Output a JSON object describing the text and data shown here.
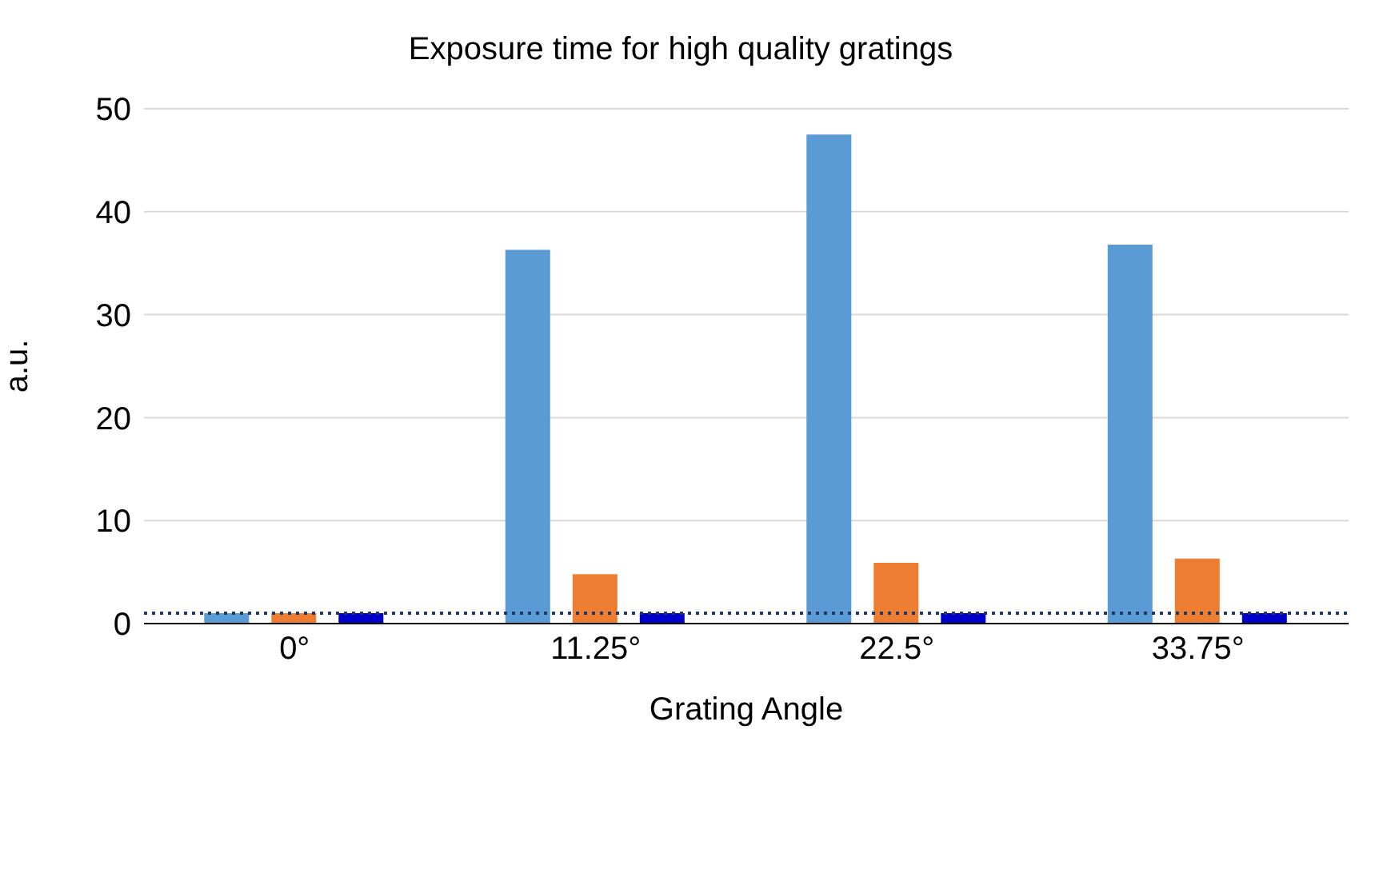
{
  "chart_data": {
    "type": "bar",
    "title": "Exposure time for high quality gratings",
    "xlabel": "Grating Angle",
    "ylabel": "a.u.",
    "categories": [
      "0°",
      "11.25°",
      "22.5°",
      "33.75°"
    ],
    "series": [
      {
        "color": "#5b9bd5",
        "values": [
          1,
          36.3,
          47.5,
          36.8
        ]
      },
      {
        "color": "#ed7d31",
        "values": [
          1,
          4.8,
          5.9,
          6.3
        ]
      },
      {
        "color": "#0000c8",
        "values": [
          1,
          1,
          1,
          1
        ]
      }
    ],
    "ylim": [
      0,
      50
    ],
    "yticks": [
      0,
      10,
      20,
      30,
      40,
      50
    ],
    "grid": "y",
    "ref_lines": [
      {
        "axis": "y",
        "value": 1,
        "color": "#1f3864",
        "line_style": "dotted"
      }
    ]
  }
}
